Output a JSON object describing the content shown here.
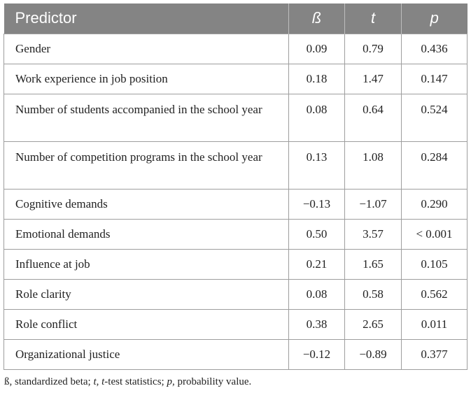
{
  "table": {
    "headers": {
      "predictor": "Predictor",
      "beta": "ß",
      "t": "t",
      "p": "p"
    },
    "rows": [
      {
        "predictor": "Gender",
        "beta": "0.09",
        "t": "0.79",
        "p": "0.436"
      },
      {
        "predictor": "Work experience in job position",
        "beta": "0.18",
        "t": "1.47",
        "p": "0.147"
      },
      {
        "predictor": "Number of students accompanied in the school year",
        "beta": "0.08",
        "t": "0.64",
        "p": "0.524"
      },
      {
        "predictor": "Number of competition programs in the school year",
        "beta": "0.13",
        "t": "1.08",
        "p": "0.284"
      },
      {
        "predictor": "Cognitive demands",
        "beta": "−0.13",
        "t": "−1.07",
        "p": "0.290"
      },
      {
        "predictor": "Emotional demands",
        "beta": "0.50",
        "t": "3.57",
        "p": "< 0.001"
      },
      {
        "predictor": "Influence at job",
        "beta": "0.21",
        "t": "1.65",
        "p": "0.105"
      },
      {
        "predictor": "Role clarity",
        "beta": "0.08",
        "t": "0.58",
        "p": "0.562"
      },
      {
        "predictor": "Role conflict",
        "beta": "0.38",
        "t": "2.65",
        "p": "0.011"
      },
      {
        "predictor": "Organizational justice",
        "beta": "−0.12",
        "t": "−0.89",
        "p": "0.377"
      }
    ],
    "header_color": "#848484"
  },
  "footnote": {
    "beta_symbol": "ß",
    "beta_text": ", standardized beta; ",
    "t_symbol": "t",
    "t_sep": ", ",
    "t_prefix": "t",
    "t_text": "-test statistics; ",
    "p_symbol": "p",
    "p_text": ", probability value."
  }
}
